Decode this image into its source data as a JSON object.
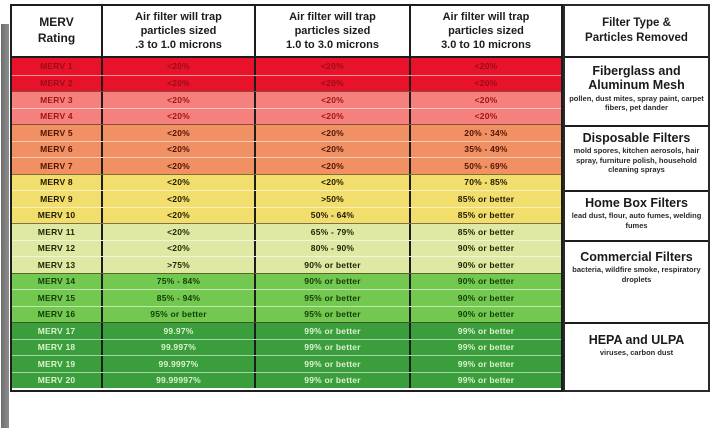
{
  "palette": {
    "band_red": "#e8132b",
    "band_salmon": "#f5807d",
    "band_orange": "#f19063",
    "band_yellow": "#f2de6d",
    "band_pale_green": "#dfe9a4",
    "band_green": "#73c950",
    "band_dark_green": "#3a9e3d",
    "border": "#1d1d1d"
  },
  "chart_data": {
    "type": "table",
    "columns": [
      "MERV\nRating",
      "Air filter will trap\nparticles sized\n.3 to 1.0 microns",
      "Air filter will trap\nparticles sized\n1.0 to 3.0 microns",
      "Air filter will trap\nparticles sized\n3.0 to 10 microns",
      "Filter Type &\nParticles Removed"
    ],
    "rows": [
      {
        "rating": "MERV 1",
        "band": "red",
        "p03": "<20%",
        "p10": "<20%",
        "p30": "<20%"
      },
      {
        "rating": "MERV 2",
        "band": "red",
        "p03": "<20%",
        "p10": "<20%",
        "p30": "<20%"
      },
      {
        "rating": "MERV 3",
        "band": "salmon",
        "p03": "<20%",
        "p10": "<20%",
        "p30": "<20%"
      },
      {
        "rating": "MERV 4",
        "band": "salmon",
        "p03": "<20%",
        "p10": "<20%",
        "p30": "<20%"
      },
      {
        "rating": "MERV 5",
        "band": "orange",
        "p03": "<20%",
        "p10": "<20%",
        "p30": "20% - 34%"
      },
      {
        "rating": "MERV 6",
        "band": "orange",
        "p03": "<20%",
        "p10": "<20%",
        "p30": "35% - 49%"
      },
      {
        "rating": "MERV 7",
        "band": "orange",
        "p03": "<20%",
        "p10": "<20%",
        "p30": "50% - 69%"
      },
      {
        "rating": "MERV 8",
        "band": "yellow",
        "p03": "<20%",
        "p10": "<20%",
        "p30": "70% - 85%"
      },
      {
        "rating": "MERV 9",
        "band": "yellow",
        "p03": "<20%",
        "p10": ">50%",
        "p30": "85% or better"
      },
      {
        "rating": "MERV 10",
        "band": "yellow",
        "p03": "<20%",
        "p10": "50% - 64%",
        "p30": "85% or better"
      },
      {
        "rating": "MERV 11",
        "band": "pale",
        "p03": "<20%",
        "p10": "65% - 79%",
        "p30": "85% or better"
      },
      {
        "rating": "MERV 12",
        "band": "pale",
        "p03": "<20%",
        "p10": "80% - 90%",
        "p30": "90% or better"
      },
      {
        "rating": "MERV 13",
        "band": "pale",
        "p03": ">75%",
        "p10": "90% or better",
        "p30": "90% or better"
      },
      {
        "rating": "MERV 14",
        "band": "green",
        "p03": "75% - 84%",
        "p10": "90% or better",
        "p30": "90% or better"
      },
      {
        "rating": "MERV 15",
        "band": "green",
        "p03": "85% - 94%",
        "p10": "95% or better",
        "p30": "90% or better"
      },
      {
        "rating": "MERV 16",
        "band": "green",
        "p03": "95% or better",
        "p10": "95% or better",
        "p30": "90% or better"
      },
      {
        "rating": "MERV 17",
        "band": "dark",
        "p03": "99.97%",
        "p10": "99% or better",
        "p30": "99% or better"
      },
      {
        "rating": "MERV 18",
        "band": "dark",
        "p03": "99.997%",
        "p10": "99% or better",
        "p30": "99% or better"
      },
      {
        "rating": "MERV 19",
        "band": "dark",
        "p03": "99.9997%",
        "p10": "99% or better",
        "p30": "99% or better"
      },
      {
        "rating": "MERV 20",
        "band": "dark",
        "p03": "99.99997%",
        "p10": "99% or better",
        "p30": "99% or better"
      }
    ],
    "filter_groups": [
      {
        "title": "Fiberglass and\nAluminum Mesh",
        "particles": "pollen, dust mites, spray paint, carpet fibers, pet dander"
      },
      {
        "title": "Disposable Filters",
        "particles": "mold spores, kitchen aerosols, hair spray, furniture polish, household cleaning sprays"
      },
      {
        "title": "Home Box Filters",
        "particles": "lead dust, flour, auto fumes, welding fumes"
      },
      {
        "title": "Commercial Filters",
        "particles": "bacteria, wildfire smoke, respiratory droplets"
      },
      {
        "title": "HEPA and ULPA",
        "particles": "viruses, carbon dust"
      }
    ]
  }
}
